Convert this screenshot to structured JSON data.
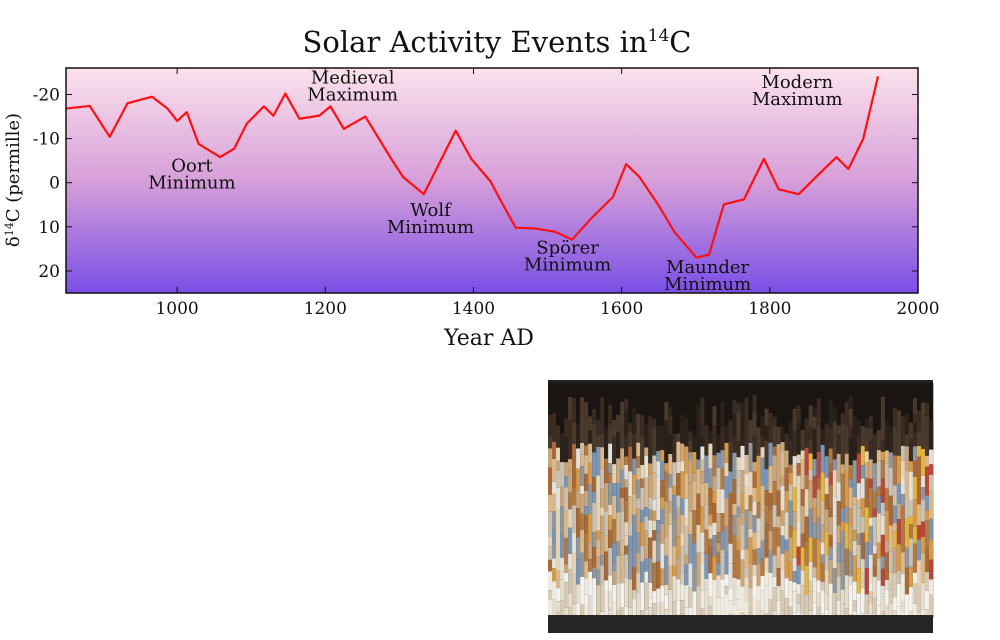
{
  "chart_data": {
    "type": "line",
    "title": {
      "prefix": "Solar Activity Events in",
      "sup": "14",
      "suffix": "C"
    },
    "xlabel": "Year AD",
    "ylabel": {
      "prefix": "δ",
      "sup": "14",
      "suffix": "C (permille)"
    },
    "xlim": [
      850,
      2000
    ],
    "ylim": [
      25,
      -26
    ],
    "y_inverted": true,
    "xticks": [
      1000,
      1200,
      1400,
      1600,
      1800,
      2000
    ],
    "yticks": [
      -20,
      -10,
      0,
      10,
      20
    ],
    "ytick_labels": [
      "-20",
      "-10",
      "0",
      "10",
      "20"
    ],
    "grid": false,
    "background_gradient": [
      "#fbe2ec",
      "#7a4fe6"
    ],
    "series": [
      {
        "name": "delta14C",
        "color": "#ff1010",
        "x": [
          850,
          882,
          909,
          933,
          966,
          987,
          1000,
          1013,
          1029,
          1058,
          1077,
          1094,
          1117,
          1130,
          1146,
          1165,
          1192,
          1207,
          1225,
          1254,
          1289,
          1305,
          1333,
          1376,
          1397,
          1423,
          1436,
          1457,
          1484,
          1510,
          1533,
          1560,
          1588,
          1606,
          1624,
          1649,
          1671,
          1701,
          1718,
          1738,
          1765,
          1792,
          1812,
          1839,
          1866,
          1890,
          1906,
          1926,
          1946
        ],
        "y": [
          -16.8,
          -17.4,
          -10.4,
          -18,
          -19.5,
          -16.8,
          -14,
          -16,
          -8.8,
          -5.8,
          -7.7,
          -13.4,
          -17.3,
          -15.2,
          -20.2,
          -14.5,
          -15.2,
          -17.3,
          -12.2,
          -15,
          -5.4,
          -1.3,
          2.6,
          -11.8,
          -5.4,
          -0.3,
          3.8,
          10.2,
          10.4,
          11.1,
          12.9,
          7.9,
          3.3,
          -4.2,
          -1.3,
          4.9,
          11.1,
          17,
          16.3,
          4.9,
          3.8,
          -5.4,
          1.5,
          2.6,
          -1.9,
          -5.8,
          -3.1,
          -9.9,
          -24.1
        ]
      }
    ],
    "annotations": [
      {
        "lines": [
          "Oort",
          "Minimum"
        ],
        "x": 1020,
        "y": -2.5
      },
      {
        "lines": [
          "Medieval",
          "Maximum"
        ],
        "x": 1237,
        "y": -22.5
      },
      {
        "lines": [
          "Wolf",
          "Minimum"
        ],
        "x": 1342,
        "y": 7.5
      },
      {
        "lines": [
          "Spörer",
          "Minimum"
        ],
        "x": 1527,
        "y": 16
      },
      {
        "lines": [
          "Maunder",
          "Minimum"
        ],
        "x": 1716,
        "y": 20.5
      },
      {
        "lines": [
          "Modern",
          "Maximum"
        ],
        "x": 1837,
        "y": -21.5
      }
    ]
  }
}
